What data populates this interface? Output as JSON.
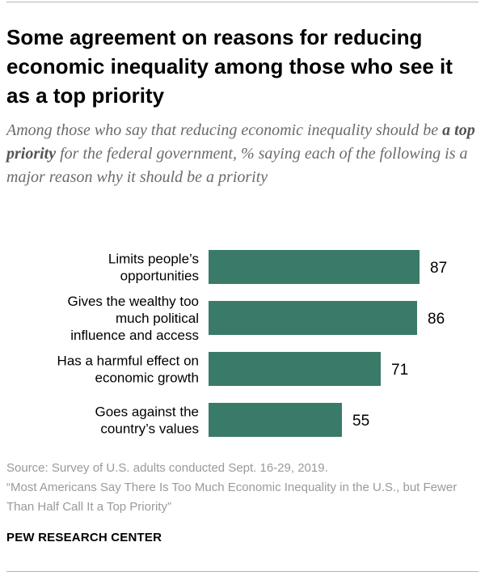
{
  "title": "Some agreement on reasons for reducing economic inequality among those who see it as a top priority",
  "subtitle": {
    "before": "Among those who say that reducing economic inequality should be ",
    "emphasis": "a top priority",
    "after": " for the federal government, % saying each of the following is a major reason why it should be a priority"
  },
  "chart_data": {
    "type": "bar",
    "orientation": "horizontal",
    "categories": [
      [
        "Limits people’s",
        "opportunities"
      ],
      [
        "Gives the wealthy too",
        "much political",
        "influence and access"
      ],
      [
        "Has a harmful effect on",
        "economic growth"
      ],
      [
        "Goes against the",
        "country’s values"
      ]
    ],
    "values": [
      87,
      86,
      71,
      55
    ],
    "xlim": [
      0,
      100
    ],
    "bar_color": "#3a7a68",
    "grid": false
  },
  "source": {
    "line1": "Source: Survey of U.S. adults conducted Sept. 16-29, 2019.",
    "line2": "“Most Americans Say There Is Too Much Economic Inequality in the U.S., but Fewer Than Half Call It a Top Priority”"
  },
  "org": "PEW RESEARCH CENTER"
}
